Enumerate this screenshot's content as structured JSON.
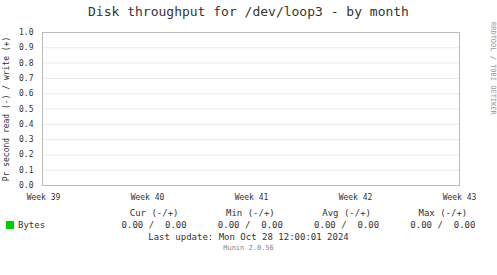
{
  "chart_data": {
    "type": "line",
    "title": "Disk throughput for /dev/loop3 - by month",
    "y_label": "Pr second read (-) / write (+)",
    "categories": [
      "Week 39",
      "Week 40",
      "Week 41",
      "Week 42",
      "Week 43"
    ],
    "series": [
      {
        "name": "Bytes",
        "color": "#00cc00",
        "values": [
          null,
          null,
          null,
          null,
          null
        ]
      }
    ],
    "ylim": [
      0.0,
      1.0
    ],
    "yticks": [
      {
        "value": 0.0,
        "label": "0.0"
      },
      0.1,
      0.2,
      0.3,
      0.4,
      0.5,
      0.6,
      0.7,
      0.8,
      0.9,
      {
        "value": 1.0,
        "label": "1.0"
      }
    ],
    "grid": true,
    "annotations": [
      "Cur (-/+)",
      "Min (-/+)",
      "Avg (-/+)",
      "Max (-/+)",
      "0.00 /  0.00",
      "0.00 /  0.00",
      "0.00 /  0.00",
      "0.00 /  0.00",
      "Last update: Mon Oct 28 12:00:01 2024",
      "Munin 2.0.56",
      "RRDTOOL / TOBI OETIKER"
    ]
  }
}
